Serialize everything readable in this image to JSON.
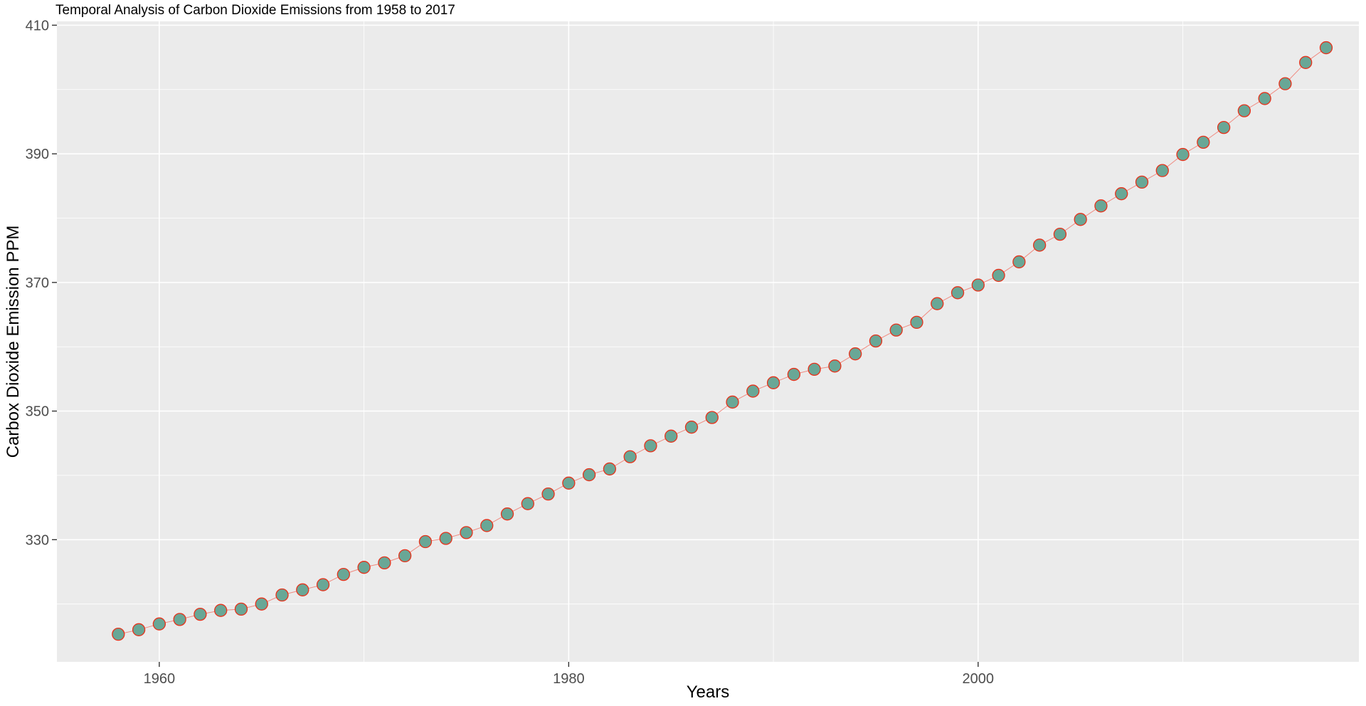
{
  "chart_data": {
    "type": "scatter",
    "title": "Temporal Analysis of Carbon Dioxide Emissions from 1958 to 2017",
    "xlabel": "Years",
    "ylabel": "Carbox Dioxide Emission PPM",
    "xlim": [
      1955,
      2018.6
    ],
    "ylim": [
      311,
      410.6
    ],
    "x_ticks": [
      1960,
      1980,
      2000
    ],
    "y_ticks": [
      330,
      350,
      370,
      390,
      410
    ],
    "grid": true,
    "legend": "none",
    "colors": {
      "panel": "#ebebeb",
      "grid": "#ffffff",
      "point_fill": "#69a796",
      "point_stroke": "#e8311a",
      "line": "#f08a80",
      "tick_text": "#4d4d4d",
      "tick_mark": "#333333"
    },
    "x": [
      1958,
      1959,
      1960,
      1961,
      1962,
      1963,
      1964,
      1965,
      1966,
      1967,
      1968,
      1969,
      1970,
      1971,
      1972,
      1973,
      1974,
      1975,
      1976,
      1977,
      1978,
      1979,
      1980,
      1981,
      1982,
      1983,
      1984,
      1985,
      1986,
      1987,
      1988,
      1989,
      1990,
      1991,
      1992,
      1993,
      1994,
      1995,
      1996,
      1997,
      1998,
      1999,
      2000,
      2001,
      2002,
      2003,
      2004,
      2005,
      2006,
      2007,
      2008,
      2009,
      2010,
      2011,
      2012,
      2013,
      2014,
      2015,
      2016,
      2017
    ],
    "y": [
      315.3,
      316.0,
      316.9,
      317.6,
      318.4,
      319.0,
      319.2,
      320.0,
      321.4,
      322.2,
      323.0,
      324.6,
      325.7,
      326.4,
      327.5,
      329.7,
      330.2,
      331.1,
      332.2,
      334.0,
      335.6,
      337.1,
      338.8,
      340.1,
      341.0,
      342.9,
      344.6,
      346.1,
      347.5,
      349.0,
      351.4,
      353.1,
      354.4,
      355.7,
      356.5,
      357.0,
      358.9,
      360.9,
      362.6,
      363.8,
      366.7,
      368.4,
      369.6,
      371.1,
      373.2,
      375.8,
      377.5,
      379.8,
      381.9,
      383.8,
      385.6,
      387.4,
      389.9,
      391.8,
      394.1,
      396.7,
      398.6,
      400.9,
      404.2,
      406.5
    ]
  }
}
